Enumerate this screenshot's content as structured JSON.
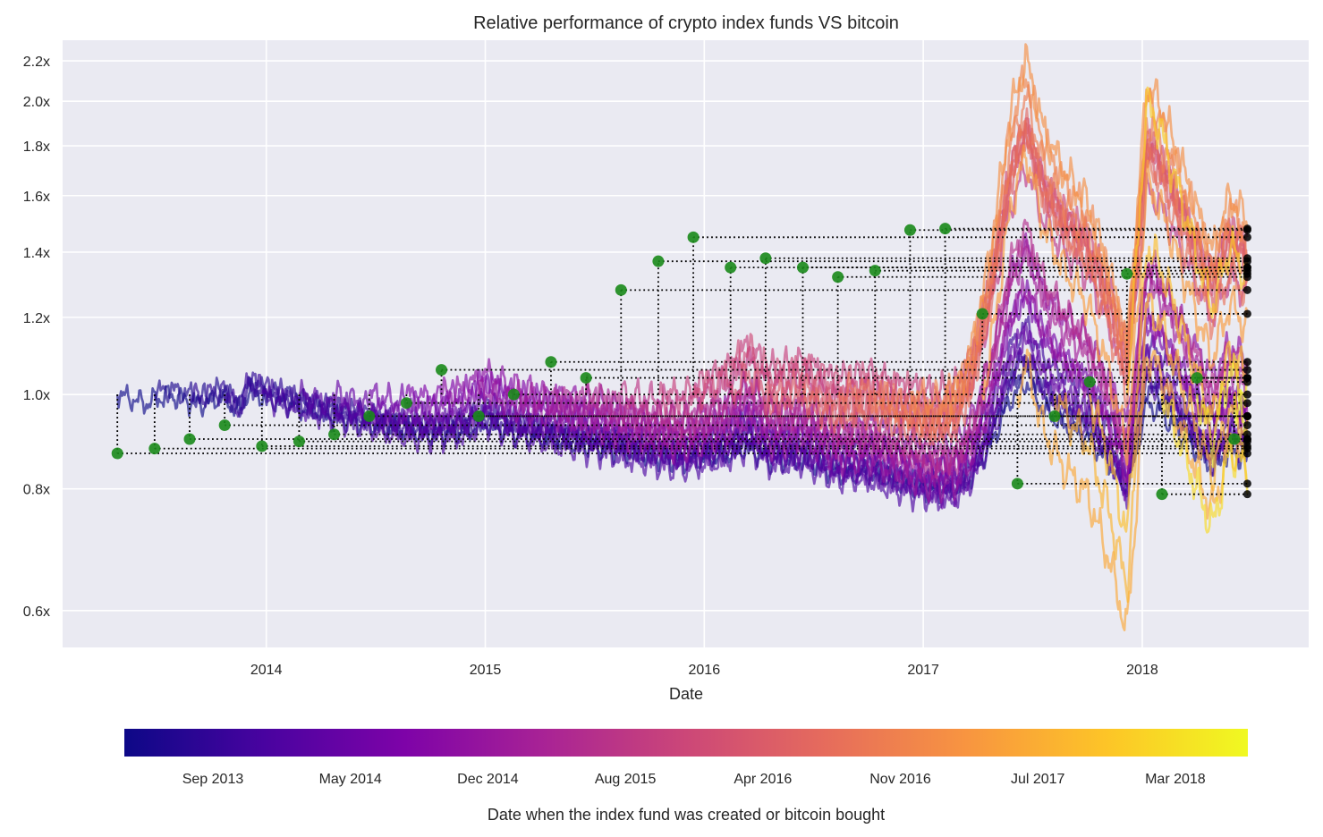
{
  "chart_data": {
    "type": "line",
    "title": "Relative performance of crypto index funds VS bitcoin",
    "xlabel": "Date",
    "ylabel": "",
    "yscale": "log",
    "ylim": [
      0.55,
      2.31
    ],
    "xlim": [
      2013.07,
      2018.76
    ],
    "grid": true,
    "x_ticks": [
      {
        "value": 2014,
        "label": "2014"
      },
      {
        "value": 2015,
        "label": "2015"
      },
      {
        "value": 2016,
        "label": "2016"
      },
      {
        "value": 2017,
        "label": "2017"
      },
      {
        "value": 2018,
        "label": "2018"
      }
    ],
    "y_ticks": [
      {
        "value": 0.6,
        "label": "0.6x"
      },
      {
        "value": 0.8,
        "label": "0.8x"
      },
      {
        "value": 1.0,
        "label": "1.0x"
      },
      {
        "value": 1.2,
        "label": "1.2x"
      },
      {
        "value": 1.4,
        "label": "1.4x"
      },
      {
        "value": 1.6,
        "label": "1.6x"
      },
      {
        "value": 1.8,
        "label": "1.8x"
      },
      {
        "value": 2.0,
        "label": "2.0x"
      },
      {
        "value": 2.2,
        "label": "2.2x"
      }
    ],
    "end_date": 2018.48,
    "base_curve_note": "shared log-ratio path of index vs bitcoin",
    "base_curve": [
      [
        2013.3,
        0.0
      ],
      [
        2013.45,
        -0.05
      ],
      [
        2013.55,
        0.02
      ],
      [
        2013.7,
        -0.02
      ],
      [
        2013.8,
        0.04
      ],
      [
        2013.88,
        -0.05
      ],
      [
        2013.92,
        0.1
      ],
      [
        2014.0,
        0.06
      ],
      [
        2014.2,
        0.0
      ],
      [
        2014.4,
        -0.04
      ],
      [
        2014.55,
        -0.07
      ],
      [
        2014.75,
        -0.08
      ],
      [
        2014.9,
        -0.05
      ],
      [
        2015.0,
        0.02
      ],
      [
        2015.1,
        -0.02
      ],
      [
        2015.3,
        -0.05
      ],
      [
        2015.5,
        -0.07
      ],
      [
        2015.7,
        -0.1
      ],
      [
        2015.9,
        -0.12
      ],
      [
        2016.1,
        -0.05
      ],
      [
        2016.2,
        0.02
      ],
      [
        2016.3,
        -0.06
      ],
      [
        2016.45,
        -0.04
      ],
      [
        2016.6,
        -0.1
      ],
      [
        2016.75,
        -0.09
      ],
      [
        2016.9,
        -0.13
      ],
      [
        2017.05,
        -0.16
      ],
      [
        2017.15,
        -0.14
      ],
      [
        2017.22,
        -0.05
      ],
      [
        2017.3,
        0.15
      ],
      [
        2017.4,
        0.5
      ],
      [
        2017.47,
        0.62
      ],
      [
        2017.55,
        0.45
      ],
      [
        2017.65,
        0.35
      ],
      [
        2017.75,
        0.28
      ],
      [
        2017.85,
        0.12
      ],
      [
        2017.93,
        -0.05
      ],
      [
        2017.97,
        0.2
      ],
      [
        2018.02,
        0.55
      ],
      [
        2018.08,
        0.5
      ],
      [
        2018.15,
        0.4
      ],
      [
        2018.25,
        0.25
      ],
      [
        2018.32,
        0.15
      ],
      [
        2018.4,
        0.28
      ],
      [
        2018.48,
        0.22
      ]
    ],
    "series_colorbar": {
      "label": "Date when the index fund was created or bitcoin bought",
      "colormap": "plasma",
      "ticks": [
        "Sep 2013",
        "May 2014",
        "Dec 2014",
        "Aug 2015",
        "Apr 2016",
        "Nov 2016",
        "Jul 2017",
        "Mar 2018"
      ],
      "range": [
        2013.32,
        2018.48
      ]
    },
    "marker_colors": {
      "start_marker": "#1a8a1a",
      "end_marker": "#000000",
      "grid": "#ffffff",
      "background": "#eaeaf2"
    },
    "funds": [
      {
        "start": 2013.32,
        "end_value": 0.87
      },
      {
        "start": 2013.49,
        "end_value": 0.88
      },
      {
        "start": 2013.65,
        "end_value": 0.9
      },
      {
        "start": 2013.81,
        "end_value": 0.93
      },
      {
        "start": 2013.98,
        "end_value": 0.885
      },
      {
        "start": 2014.15,
        "end_value": 0.895
      },
      {
        "start": 2014.31,
        "end_value": 0.91
      },
      {
        "start": 2014.47,
        "end_value": 0.95
      },
      {
        "start": 2014.64,
        "end_value": 0.98
      },
      {
        "start": 2014.8,
        "end_value": 1.06
      },
      {
        "start": 2014.97,
        "end_value": 0.95
      },
      {
        "start": 2015.13,
        "end_value": 1.0
      },
      {
        "start": 2015.3,
        "end_value": 1.08
      },
      {
        "start": 2015.46,
        "end_value": 1.04
      },
      {
        "start": 2015.62,
        "end_value": 1.28
      },
      {
        "start": 2015.79,
        "end_value": 1.37
      },
      {
        "start": 2015.95,
        "end_value": 1.45
      },
      {
        "start": 2016.12,
        "end_value": 1.35
      },
      {
        "start": 2016.28,
        "end_value": 1.38
      },
      {
        "start": 2016.45,
        "end_value": 1.35
      },
      {
        "start": 2016.61,
        "end_value": 1.32
      },
      {
        "start": 2016.78,
        "end_value": 1.34
      },
      {
        "start": 2016.94,
        "end_value": 1.475
      },
      {
        "start": 2017.1,
        "end_value": 1.48
      },
      {
        "start": 2017.27,
        "end_value": 1.21
      },
      {
        "start": 2017.43,
        "end_value": 0.81
      },
      {
        "start": 2017.6,
        "end_value": 0.95
      },
      {
        "start": 2017.76,
        "end_value": 1.03
      },
      {
        "start": 2017.93,
        "end_value": 1.33
      },
      {
        "start": 2018.09,
        "end_value": 0.79
      },
      {
        "start": 2018.25,
        "end_value": 1.04
      },
      {
        "start": 2018.42,
        "end_value": 0.9
      }
    ]
  }
}
